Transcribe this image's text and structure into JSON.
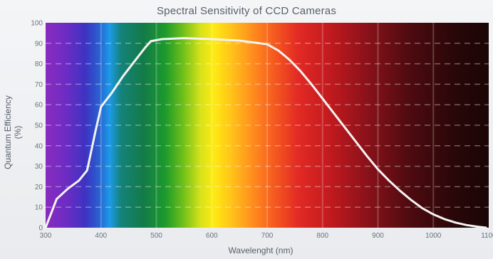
{
  "chart_data": {
    "type": "line",
    "title": "Spectral Sensitivity of CCD Cameras",
    "xlabel": "Wavelenght (nm)",
    "ylabel": "Quantum Efficiency (%)",
    "xlim": [
      300,
      1100
    ],
    "ylim": [
      0,
      100
    ],
    "x_ticks": [
      300,
      400,
      500,
      600,
      700,
      800,
      900,
      1000,
      1100
    ],
    "y_ticks": [
      0,
      10,
      20,
      30,
      40,
      50,
      60,
      70,
      80,
      90,
      100
    ],
    "grid": true,
    "series": [
      {
        "color": "#f4f4f2",
        "x": [
          300,
          310,
          320,
          340,
          360,
          375,
          390,
          400,
          420,
          440,
          460,
          480,
          490,
          510,
          550,
          600,
          650,
          700,
          720,
          740,
          760,
          780,
          800,
          820,
          840,
          860,
          880,
          900,
          920,
          940,
          960,
          980,
          1000,
          1020,
          1040,
          1060,
          1080,
          1095
        ],
        "y": [
          0,
          7,
          14,
          19,
          23,
          28,
          47,
          59,
          66,
          74,
          81,
          88,
          91,
          92,
          92.5,
          92,
          91.3,
          89.5,
          86.5,
          82,
          76.5,
          70,
          63,
          56,
          49,
          42,
          35,
          28.5,
          23,
          18,
          13.5,
          9.5,
          6.5,
          4.2,
          2.5,
          1.3,
          0.5,
          0
        ]
      }
    ],
    "background": "visible-spectrum gradient (violet → red → dark IR)"
  }
}
